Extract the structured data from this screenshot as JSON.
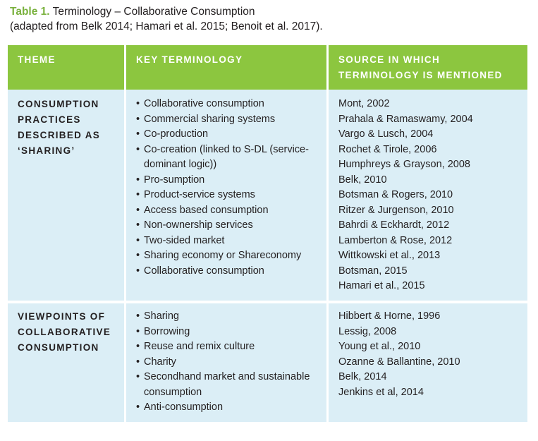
{
  "caption": {
    "label": "Table 1.",
    "title": "Terminology – Collaborative Consumption",
    "subtitle": "(adapted from Belk 2014; Hamari et al. 2015; Benoit et al. 2017)."
  },
  "table": {
    "headers": [
      "THEME",
      "KEY TERMINOLOGY",
      "SOURCE IN WHICH TERMINOLOGY IS MENTIONED"
    ],
    "rows": [
      {
        "theme": "CONSUMPTION PRACTICES DESCRIBED AS ‘SHARING’",
        "terms": [
          "Collaborative consumption",
          "Commercial sharing systems",
          "Co-production",
          "Co-creation (linked to S-DL (service-dominant logic))",
          "Pro-sumption",
          "Product-service systems",
          "Access based consumption",
          "Non-ownership services",
          "Two-sided market",
          "Sharing economy or Shareconomy",
          "Collaborative consumption"
        ],
        "sources": [
          "Mont, 2002",
          "Prahala & Ramaswamy, 2004",
          "Vargo & Lusch, 2004",
          "Rochet & Tirole, 2006",
          "Humphreys & Grayson, 2008",
          "Belk, 2010",
          "Botsman & Rogers, 2010",
          "Ritzer & Jurgenson, 2010",
          "Bahrdi & Eckhardt, 2012",
          "Lamberton & Rose, 2012",
          "Wittkowski et al., 2013",
          "Botsman, 2015",
          "Hamari et al., 2015"
        ]
      },
      {
        "theme": "VIEWPOINTS OF COLLABORATIVE CONSUMPTION",
        "terms": [
          "Sharing",
          "Borrowing",
          "Reuse and remix culture",
          "Charity",
          "Secondhand market and sustainable consumption",
          "Anti-consumption"
        ],
        "sources": [
          "Hibbert & Horne, 1996",
          "Lessig, 2008",
          "Young et al., 2010",
          "Ozanne & Ballantine, 2010",
          "Belk, 2014",
          "Jenkins et al, 2014"
        ]
      }
    ]
  },
  "colors": {
    "header_bg": "#8cc63f",
    "caption_label": "#7ab13e",
    "cell_bg": "#dbeef6",
    "text": "#231f20"
  }
}
